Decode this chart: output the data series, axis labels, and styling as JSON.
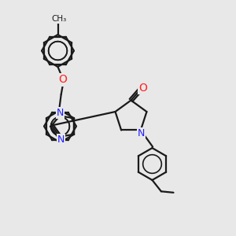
{
  "bg": "#e8e8e8",
  "bc": "#1a1a1a",
  "nc": "#2020ff",
  "oc": "#ff2020",
  "lw": 1.6,
  "figsize": [
    3.0,
    3.0
  ],
  "dpi": 100,
  "xlim": [
    0,
    10
  ],
  "ylim": [
    0,
    10
  ]
}
